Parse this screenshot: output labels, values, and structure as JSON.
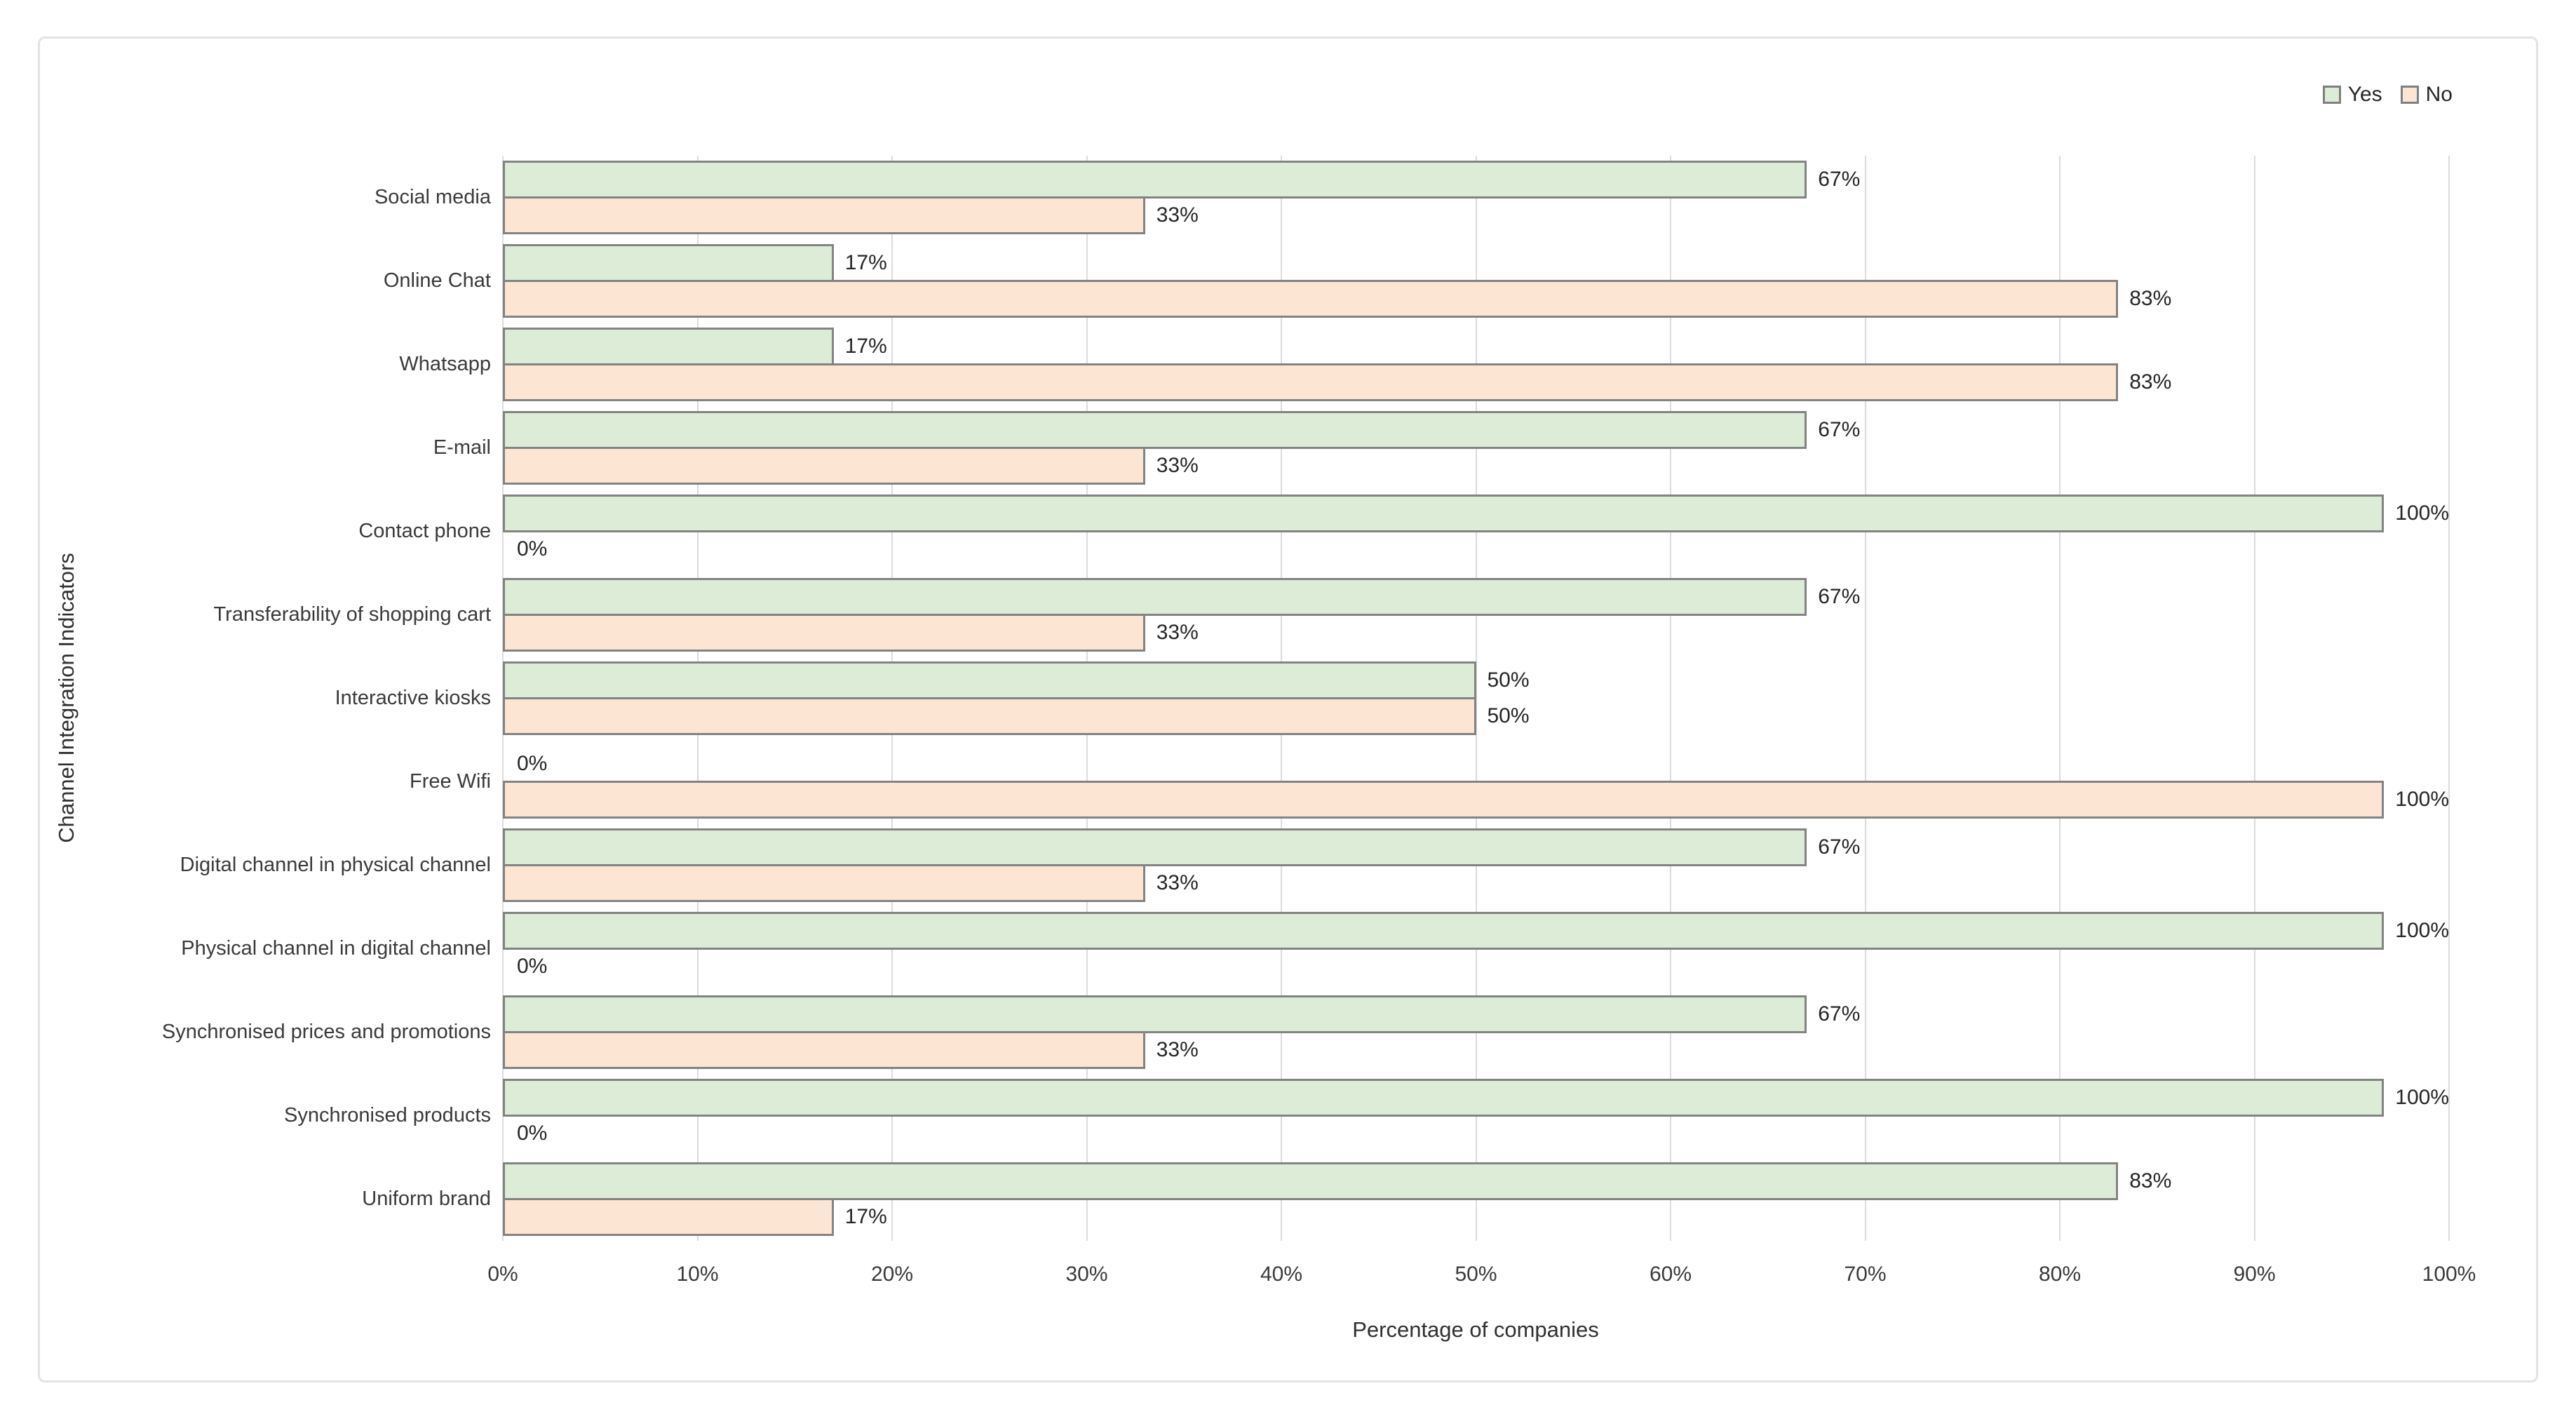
{
  "figure": {
    "background": "#ffffff",
    "border_color": "#e3e3e3"
  },
  "legend": {
    "position": "top-right",
    "items": [
      {
        "label": "Yes",
        "color": "#dcecd6"
      },
      {
        "label": "No",
        "color": "#fde5d3"
      }
    ]
  },
  "chart_data": {
    "type": "bar",
    "orientation": "horizontal",
    "title": "",
    "xlabel": "Percentage of companies",
    "ylabel": "Channel Integration Indicators",
    "categories": [
      "Social media",
      "Online Chat",
      "Whatsapp",
      "E-mail",
      "Contact phone",
      "Transferability of shopping cart",
      "Interactive kiosks",
      "Free Wifi",
      "Digital channel in physical channel",
      "Physical channel in digital channel",
      "Synchronised prices and promotions",
      "Synchronised products",
      "Uniform brand"
    ],
    "series": [
      {
        "name": "Yes",
        "color": "#dcecd6",
        "values": [
          67,
          17,
          17,
          67,
          100,
          67,
          50,
          0,
          67,
          100,
          67,
          100,
          83
        ]
      },
      {
        "name": "No",
        "color": "#fde5d3",
        "values": [
          33,
          83,
          83,
          33,
          0,
          33,
          50,
          100,
          33,
          0,
          33,
          0,
          17
        ]
      }
    ],
    "data_label_suffix": "%",
    "x_ticks": [
      "0%",
      "10%",
      "20%",
      "30%",
      "40%",
      "50%",
      "60%",
      "70%",
      "80%",
      "90%",
      "100%"
    ],
    "xlim": [
      0,
      100
    ],
    "gridlines": "vertical-major",
    "gridline_color": "#dcdcdc",
    "bar_border_color": "#838383",
    "legend_position": "top-right",
    "text_color": "#3a3a3a"
  }
}
